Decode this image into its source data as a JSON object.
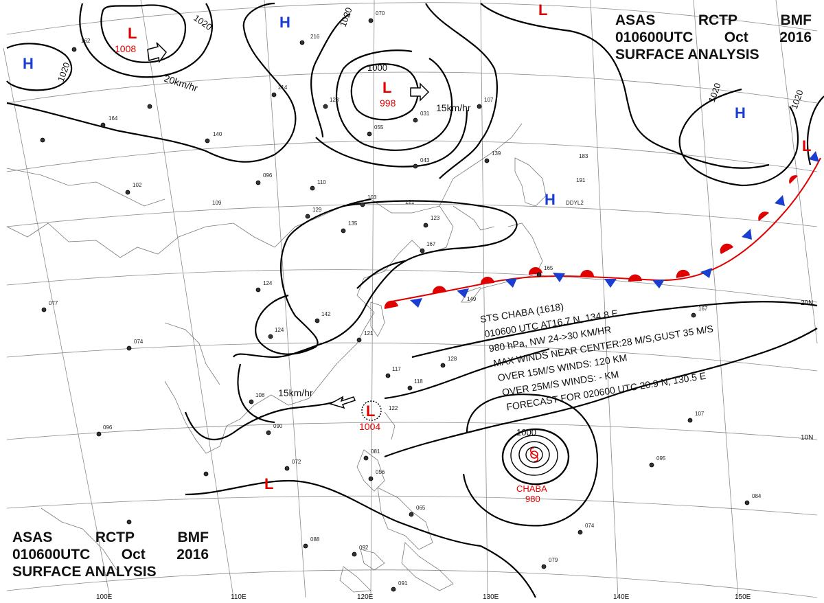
{
  "header": {
    "line1": [
      "ASAS",
      "RCTP",
      "BMF"
    ],
    "line2": [
      "010600UTC",
      "Oct",
      "2016"
    ],
    "line3": "SURFACE ANALYSIS"
  },
  "pressure_systems": [
    {
      "type": "L",
      "value": "1008"
    },
    {
      "type": "L",
      "value": "998"
    },
    {
      "type": "L",
      "value": "1004"
    },
    {
      "type": "L",
      "value": ""
    },
    {
      "type": "L",
      "value": ""
    },
    {
      "type": "L",
      "value": ""
    },
    {
      "type": "H",
      "value": ""
    },
    {
      "type": "H",
      "value": ""
    },
    {
      "type": "H",
      "value": ""
    },
    {
      "type": "H",
      "value": ""
    }
  ],
  "isobar_labels": [
    "1020",
    "1020",
    "1020",
    "1020",
    "1020",
    "1000",
    "1000"
  ],
  "motions": [
    "20km/hr",
    "15km/hr",
    "15km/hr"
  ],
  "storm": {
    "name": "CHABA",
    "pressure": "980",
    "bulletin": [
      "STS  CHABA  (1618)",
      "010600 UTC  AT16.7 N, 134.8 E",
      "980 hPa, NW  24->30 KM/HR",
      "MAX WINDS NEAR CENTER:28 M/S,GUST 35 M/S",
      "OVER 15M/S WINDS: 120 KM",
      "OVER 25M/S WINDS: - KM",
      "FORECAST FOR 020600 UTC 20.9 N, 130.5 E"
    ]
  },
  "grid_labels": {
    "longitudes": [
      "100E",
      "110E",
      "120E",
      "130E",
      "140E",
      "150E"
    ],
    "latitudes": [
      "20N",
      "10N"
    ]
  },
  "station_obs": [
    "162",
    "070",
    "216",
    "214",
    "123",
    "140",
    "164",
    "055",
    "031",
    "043",
    "107",
    "096",
    "110",
    "102",
    "109",
    "103",
    "121",
    "129",
    "135",
    "123",
    "167",
    "139",
    "183",
    "191",
    "124",
    "142",
    "121",
    "149",
    "124",
    "117",
    "118",
    "128",
    "108",
    "090",
    "096",
    "122",
    "074",
    "077",
    "072",
    "081",
    "056",
    "065",
    "088",
    "092",
    "091",
    "079",
    "074",
    "084",
    "095",
    "107",
    "167",
    "165",
    "DDYL2"
  ],
  "colors": {
    "low": "#e00000",
    "high": "#1a3fd0",
    "warm_front": "#e00000",
    "cold_front": "#1a3fd0",
    "isobar": "#000000",
    "coast": "#777777"
  }
}
